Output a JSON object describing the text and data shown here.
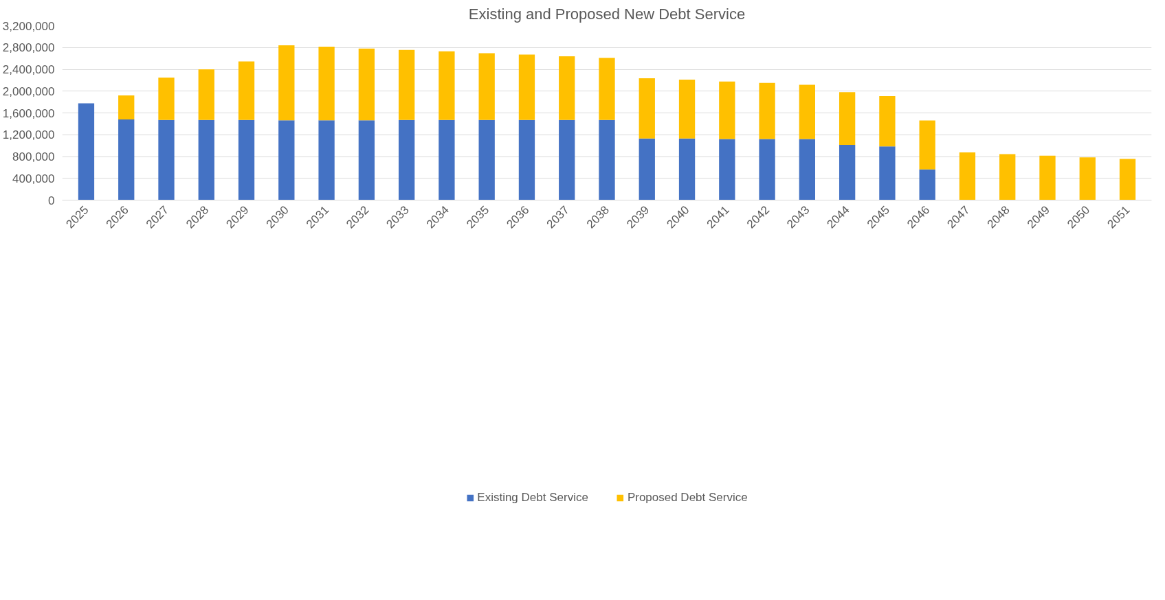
{
  "chart_data": {
    "type": "bar",
    "title": "Existing and Proposed New Debt Service",
    "stacked": true,
    "categories": [
      "2025",
      "2026",
      "2027",
      "2028",
      "2029",
      "2030",
      "2031",
      "2032",
      "2033",
      "2034",
      "2035",
      "2036",
      "2037",
      "2038",
      "2039",
      "2040",
      "2041",
      "2042",
      "2043",
      "2044",
      "2045",
      "2046",
      "2047",
      "2048",
      "2049",
      "2050",
      "2051"
    ],
    "series": [
      {
        "name": "Existing Debt Service",
        "color": "#4472c4",
        "values": [
          1775000,
          1480000,
          1470000,
          1470000,
          1470000,
          1465000,
          1465000,
          1465000,
          1470000,
          1470000,
          1470000,
          1470000,
          1470000,
          1470000,
          1130000,
          1130000,
          1120000,
          1120000,
          1120000,
          1015000,
          985000,
          565000,
          0,
          0,
          0,
          0,
          0
        ]
      },
      {
        "name": "Proposed Debt Service",
        "color": "#ffc000",
        "values": [
          0,
          440000,
          780000,
          930000,
          1075000,
          1375000,
          1350000,
          1315000,
          1285000,
          1260000,
          1225000,
          1200000,
          1170000,
          1140000,
          1105000,
          1080000,
          1055000,
          1030000,
          995000,
          965000,
          925000,
          895000,
          875000,
          845000,
          815000,
          785000,
          755000
        ]
      }
    ],
    "ylim": [
      0,
      3200000
    ],
    "yticks": [
      0,
      {
        "value": 400000,
        "label": "400,000"
      },
      {
        "value": 800000,
        "label": "800,000"
      },
      {
        "value": 1200000,
        "label": "1,200,000"
      },
      {
        "value": 1600000,
        "label": "1,600,000"
      },
      {
        "value": 2000000,
        "label": "2,000,000"
      },
      {
        "value": 2400000,
        "label": "2,400,000"
      },
      {
        "value": 2800000,
        "label": "2,800,000"
      },
      {
        "value": 3200000,
        "label": "3,200,000"
      }
    ],
    "grid": "y",
    "legend": "bottom"
  }
}
